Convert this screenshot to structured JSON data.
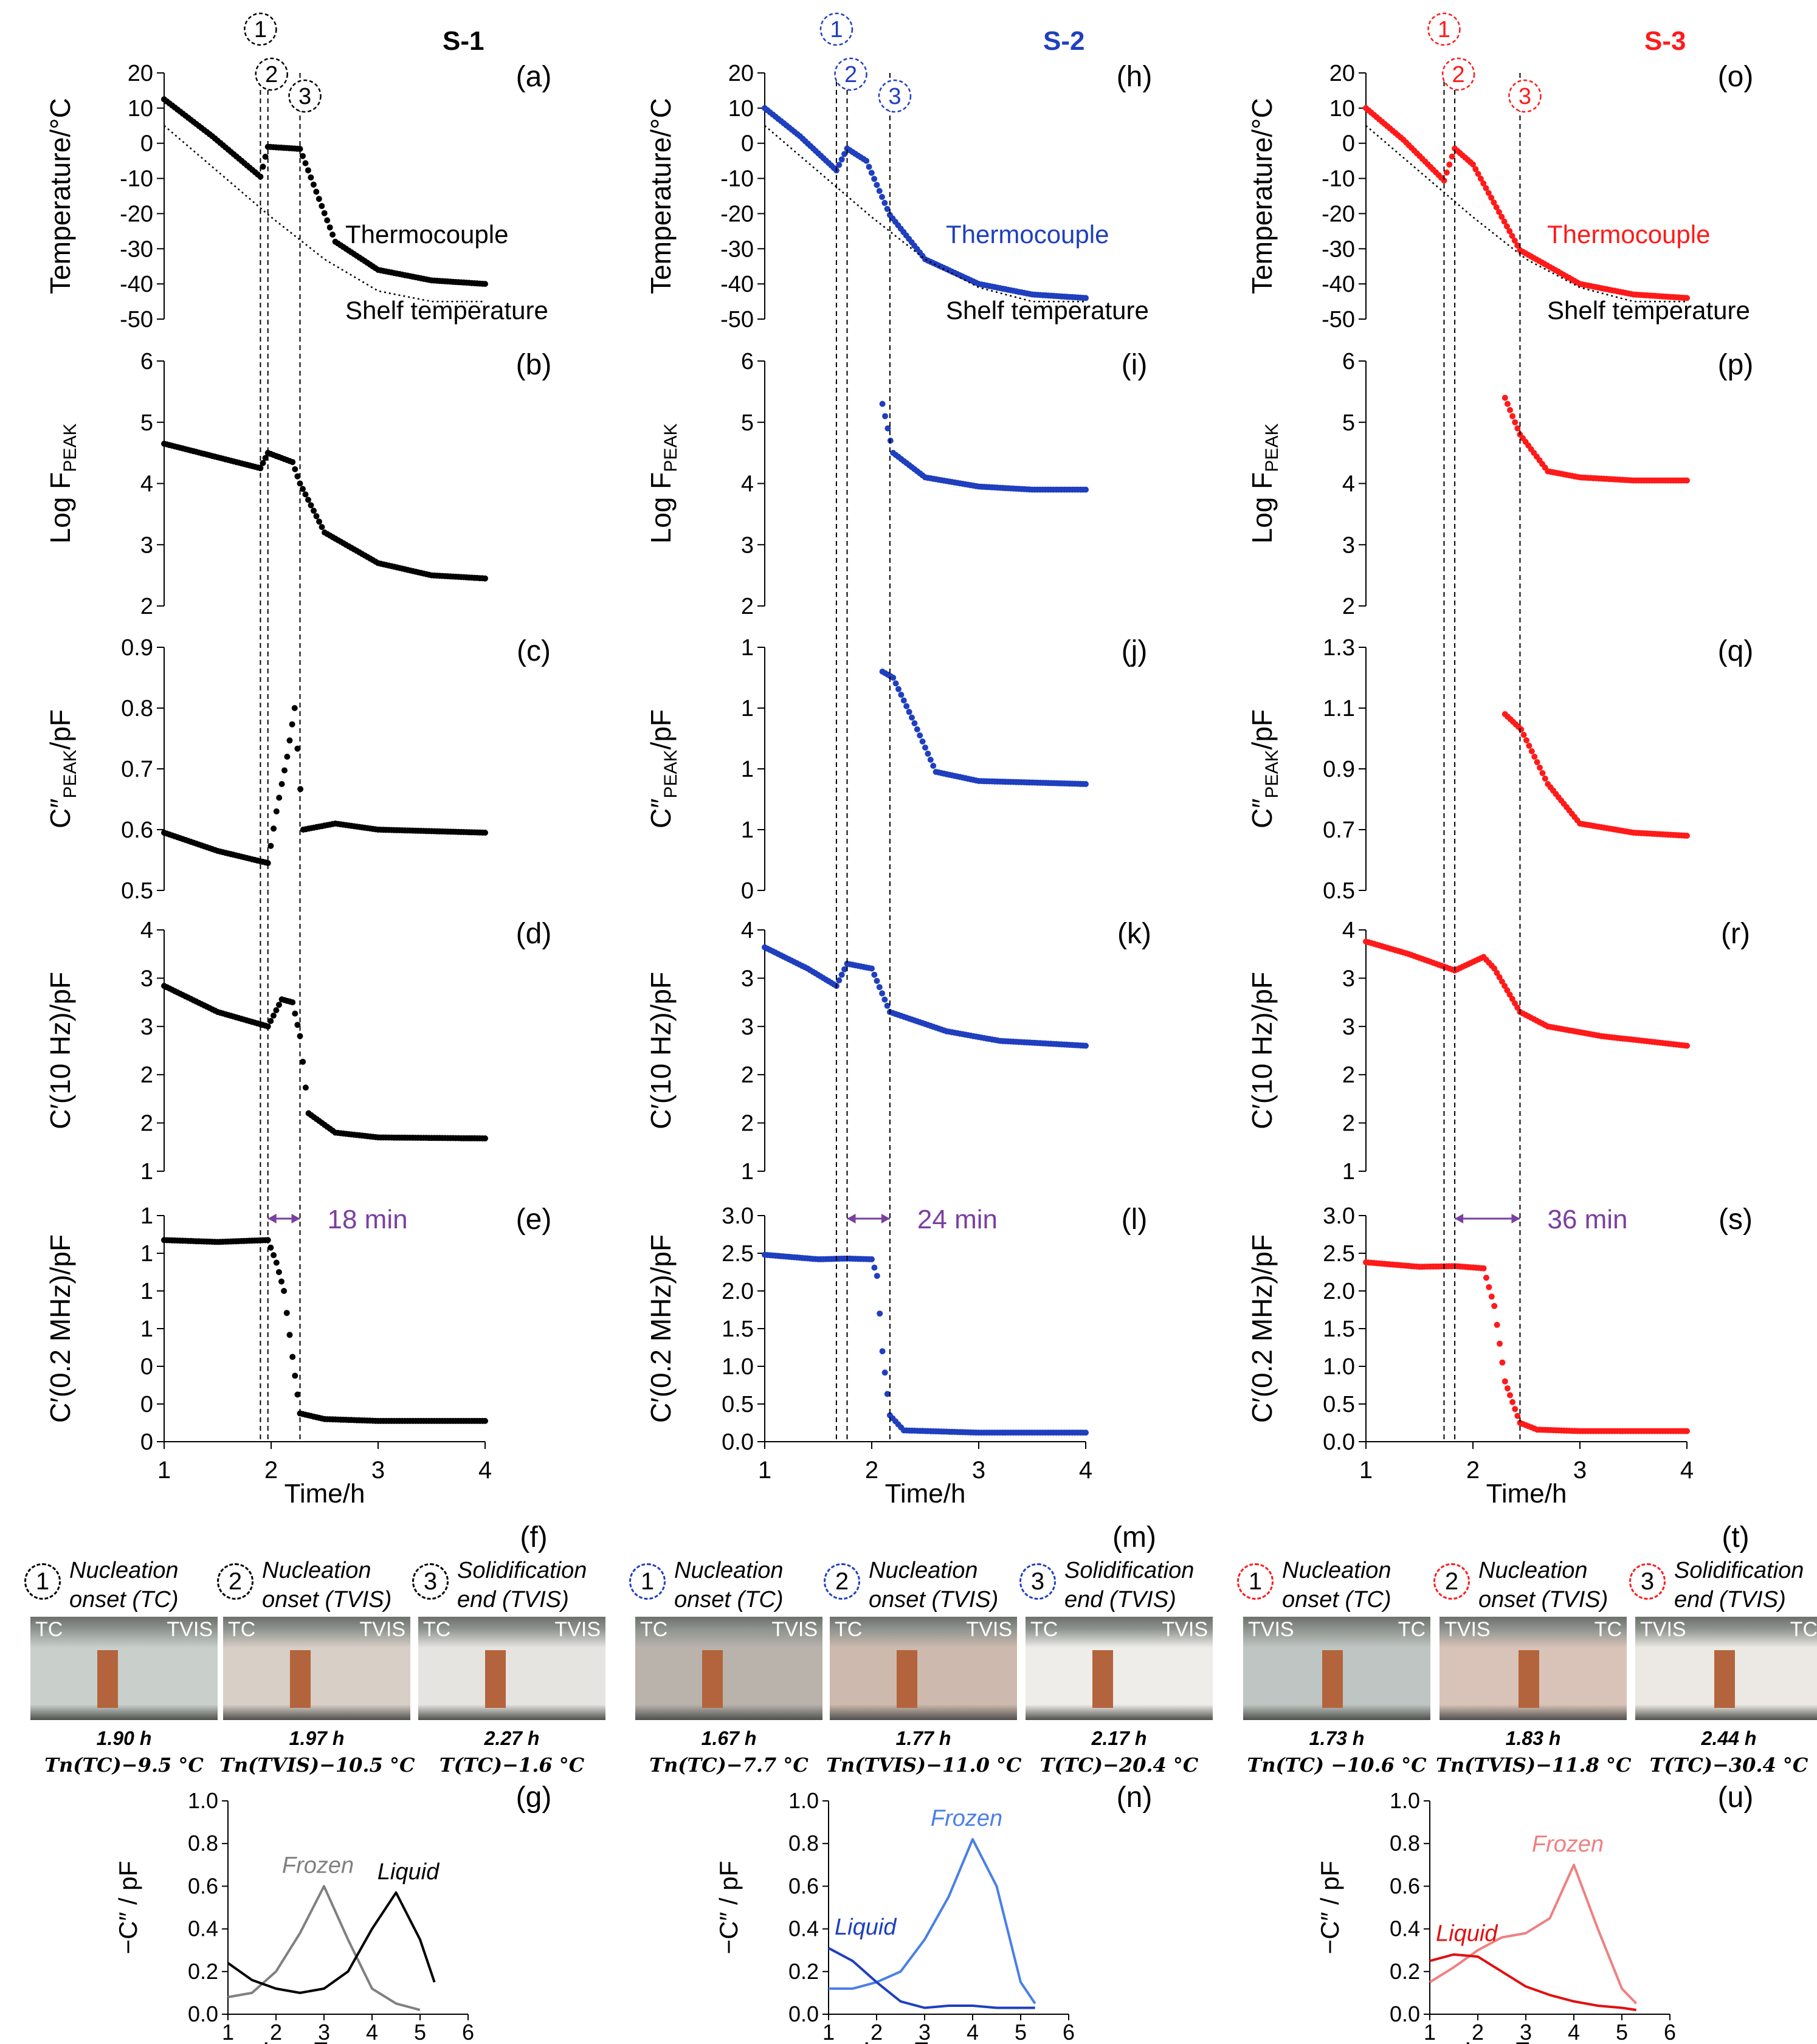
{
  "columns": [
    {
      "id": "s1",
      "sample_label": "S-1",
      "color": "#000000",
      "letters": [
        "(a)",
        "(b)",
        "(c)",
        "(d)",
        "(e)",
        "(f)",
        "(g)"
      ],
      "temp_labels": [
        "Thermocouple",
        "Shelf temperature"
      ],
      "span_label": "18 min",
      "event_times": [
        1.9,
        1.97,
        2.27
      ],
      "photo_captions": [
        {
          "num": "1",
          "line1": "Nucleation",
          "line2": "onset (TC)"
        },
        {
          "num": "2",
          "line1": "Nucleation",
          "line2": "onset (TVIS)"
        },
        {
          "num": "3",
          "line1": "Solidification",
          "line2": "end (TVIS)"
        }
      ],
      "photo_tags": [
        [
          "TC",
          "TVIS"
        ],
        [
          "TC",
          "TVIS"
        ],
        [
          "TC",
          "TVIS"
        ]
      ],
      "photo_times": [
        "1.90 h",
        "1.97 h",
        "2.27 h"
      ],
      "photo_conditions": [
        "Tn(TC)−9.5 °C",
        "Tn(TVIS)−10.5 °C",
        "T(TC)−1.6 °C"
      ],
      "spectrum_labels": [
        "Frozen",
        "Liquid"
      ]
    },
    {
      "id": "s2",
      "sample_label": "S-2",
      "color": "#1f3fbf",
      "letters": [
        "(h)",
        "(i)",
        "(j)",
        "(k)",
        "(l)",
        "(m)",
        "(n)"
      ],
      "temp_labels": [
        "Thermocouple",
        "Shelf temperature"
      ],
      "span_label": "24 min",
      "event_times": [
        1.67,
        1.77,
        2.17
      ],
      "photo_captions": [
        {
          "num": "1",
          "line1": "Nucleation",
          "line2": "onset (TC)"
        },
        {
          "num": "2",
          "line1": "Nucleation",
          "line2": "onset (TVIS)"
        },
        {
          "num": "3",
          "line1": "Solidification",
          "line2": "end (TVIS)"
        }
      ],
      "photo_tags": [
        [
          "TC",
          "TVIS"
        ],
        [
          "TC",
          "TVIS"
        ],
        [
          "TC",
          "TVIS"
        ]
      ],
      "photo_times": [
        "1.67 h",
        "1.77 h",
        "2.17 h"
      ],
      "photo_conditions": [
        "Tn(TC)−7.7 °C",
        "Tn(TVIS)−11.0 °C",
        "T(TC)−20.4 °C"
      ],
      "spectrum_labels": [
        "Frozen",
        "Liquid"
      ]
    },
    {
      "id": "s3",
      "sample_label": "S-3",
      "color": "#ff1a1a",
      "letters": [
        "(o)",
        "(p)",
        "(q)",
        "(r)",
        "(s)",
        "(t)",
        "(u)"
      ],
      "temp_labels": [
        "Thermocouple",
        "Shelf temperature"
      ],
      "span_label": "36 min",
      "event_times": [
        1.73,
        1.83,
        2.44
      ],
      "photo_captions": [
        {
          "num": "1",
          "line1": "Nucleation",
          "line2": "onset (TC)"
        },
        {
          "num": "2",
          "line1": "Nucleation",
          "line2": "onset (TVIS)"
        },
        {
          "num": "3",
          "line1": "Solidification",
          "line2": "end (TVIS)"
        }
      ],
      "photo_tags": [
        [
          "TVIS",
          "TC"
        ],
        [
          "TVIS",
          "TC"
        ],
        [
          "TVIS",
          "TC"
        ]
      ],
      "photo_times": [
        "1.73 h",
        "1.83 h",
        "2.44 h"
      ],
      "photo_conditions": [
        "Tn(TC) −10.6 °C",
        "Tn(TVIS)−11.8 °C",
        "T(TC)−30.4 °C"
      ],
      "spectrum_labels": [
        "Frozen",
        "Liquid"
      ]
    }
  ],
  "axis_text": {
    "ylabels": [
      "Temperature/°C",
      "Log F",
      "C″",
      "/pF",
      "C′(10 Hz)/pF",
      "C′(0.2 MHz)/pF"
    ],
    "peak_sub": "PEAK",
    "xlabel": "Time/h",
    "spec_xlabel": "Log Frequency",
    "spec_ylabel": "−C″ / pF"
  },
  "chart_data": [
    {
      "type": "scatter",
      "panel": "temperature",
      "x_range": [
        1,
        4
      ],
      "ylim": [
        -50,
        20
      ],
      "yticks": [
        20,
        10,
        0,
        -10,
        -20,
        -30,
        -40,
        -50
      ],
      "series": [
        {
          "name": "Thermocouple",
          "sample": "S-1",
          "x": [
            1.0,
            1.45,
            1.9,
            1.97,
            2.27,
            2.6,
            3.0,
            3.5,
            4.0
          ],
          "y": [
            12.5,
            2.0,
            -9.5,
            -1.0,
            -1.6,
            -28.0,
            -36.0,
            -39.0,
            -40.0
          ]
        },
        {
          "name": "Shelf temperature",
          "sample": "S-1",
          "x": [
            1.0,
            1.5,
            2.0,
            2.5,
            3.0,
            3.5,
            4.0
          ],
          "y": [
            5.0,
            -8.0,
            -21.0,
            -33.0,
            -42.0,
            -45.0,
            -45.0
          ]
        },
        {
          "name": "Thermocouple",
          "sample": "S-2",
          "x": [
            1.0,
            1.33,
            1.67,
            1.77,
            1.95,
            2.17,
            2.5,
            3.0,
            3.5,
            4.0
          ],
          "y": [
            10.0,
            2.0,
            -7.7,
            -1.5,
            -5.0,
            -20.4,
            -33.0,
            -40.0,
            -43.0,
            -44.0
          ]
        },
        {
          "name": "Shelf temperature",
          "sample": "S-2",
          "x": [
            1.0,
            1.5,
            2.0,
            2.5,
            3.0,
            3.5,
            4.0
          ],
          "y": [
            5.0,
            -8.0,
            -21.0,
            -33.0,
            -41.0,
            -45.0,
            -45.0
          ]
        },
        {
          "name": "Thermocouple",
          "sample": "S-3",
          "x": [
            1.0,
            1.35,
            1.73,
            1.83,
            2.0,
            2.44,
            3.0,
            3.5,
            4.0
          ],
          "y": [
            10.0,
            1.0,
            -10.6,
            -1.5,
            -6.0,
            -30.4,
            -40.0,
            -43.0,
            -44.0
          ]
        },
        {
          "name": "Shelf temperature",
          "sample": "S-3",
          "x": [
            1.0,
            1.5,
            2.0,
            2.5,
            3.0,
            3.5,
            4.0
          ],
          "y": [
            5.0,
            -8.0,
            -21.0,
            -33.0,
            -41.0,
            -45.0,
            -45.0
          ]
        }
      ]
    },
    {
      "type": "scatter",
      "panel": "log_fpeak",
      "x_range": [
        1,
        4
      ],
      "ylim": [
        2,
        6
      ],
      "yticks": [
        6,
        5,
        4,
        3,
        2
      ],
      "series": [
        {
          "sample": "S-1",
          "x": [
            1.0,
            1.9,
            1.97,
            2.2,
            2.27,
            2.5,
            3.0,
            3.5,
            4.0
          ],
          "y": [
            4.65,
            4.25,
            4.5,
            4.35,
            4.0,
            3.2,
            2.7,
            2.5,
            2.45
          ]
        },
        {
          "sample": "S-2",
          "x": [
            2.1,
            2.2,
            2.5,
            3.0,
            3.5,
            4.0
          ],
          "y": [
            5.3,
            4.5,
            4.1,
            3.95,
            3.9,
            3.9
          ]
        },
        {
          "sample": "S-3",
          "x": [
            2.3,
            2.44,
            2.7,
            3.0,
            3.5,
            4.0
          ],
          "y": [
            5.4,
            4.8,
            4.2,
            4.1,
            4.05,
            4.05
          ]
        }
      ]
    },
    {
      "type": "scatter",
      "panel": "c2_peak",
      "x_range": [
        1,
        4
      ],
      "series": [
        {
          "sample": "S-1",
          "ylim": [
            0.5,
            0.9
          ],
          "yticks": [
            0.9,
            0.8,
            0.7,
            0.6,
            0.5
          ],
          "x": [
            1.0,
            1.5,
            1.97,
            2.05,
            2.15,
            2.22,
            2.3,
            2.6,
            3.0,
            4.0
          ],
          "y": [
            0.595,
            0.565,
            0.545,
            0.63,
            0.72,
            0.8,
            0.6,
            0.61,
            0.6,
            0.595
          ]
        },
        {
          "sample": "S-2",
          "ylim": [
            0.4,
            1.2
          ],
          "yticks": [
            1.2,
            1.0,
            0.8,
            0.6,
            0.4
          ],
          "x": [
            2.1,
            2.2,
            2.4,
            2.6,
            3.0,
            4.0
          ],
          "y": [
            1.12,
            1.1,
            0.95,
            0.79,
            0.76,
            0.75
          ]
        },
        {
          "sample": "S-3",
          "ylim": [
            0.5,
            1.3
          ],
          "yticks": [
            1.3,
            1.1,
            0.9,
            0.7,
            0.5
          ],
          "x": [
            2.3,
            2.45,
            2.7,
            3.0,
            3.5,
            4.0
          ],
          "y": [
            1.08,
            1.03,
            0.85,
            0.72,
            0.69,
            0.68
          ]
        }
      ]
    },
    {
      "type": "scatter",
      "panel": "c1_10hz",
      "x_range": [
        1,
        4
      ],
      "ylim": [
        1.0,
        3.5
      ],
      "yticks": [
        3.5,
        3.0,
        2.5,
        2.0,
        1.5,
        1.0
      ],
      "series": [
        {
          "sample": "S-1",
          "x": [
            1.0,
            1.5,
            1.97,
            2.1,
            2.2,
            2.27,
            2.35,
            2.6,
            3.0,
            4.0
          ],
          "y": [
            2.92,
            2.65,
            2.5,
            2.78,
            2.75,
            2.4,
            1.6,
            1.4,
            1.35,
            1.34
          ]
        },
        {
          "sample": "S-2",
          "x": [
            1.0,
            1.4,
            1.67,
            1.77,
            2.0,
            2.17,
            2.3,
            2.7,
            3.2,
            4.0
          ],
          "y": [
            3.32,
            3.1,
            2.92,
            3.15,
            3.1,
            2.65,
            2.6,
            2.45,
            2.35,
            2.3
          ]
        },
        {
          "sample": "S-3",
          "x": [
            1.0,
            1.4,
            1.83,
            2.1,
            2.2,
            2.44,
            2.7,
            3.2,
            4.0
          ],
          "y": [
            3.38,
            3.25,
            3.08,
            3.22,
            3.1,
            2.65,
            2.5,
            2.4,
            2.3
          ]
        }
      ]
    },
    {
      "type": "scatter",
      "panel": "c1_02mhz",
      "x_range": [
        1,
        4
      ],
      "series": [
        {
          "sample": "S-1",
          "ylim": [
            0.0,
            1.2
          ],
          "yticks": [
            1.2,
            1.0,
            0.8,
            0.6,
            0.4,
            0.2,
            0.0
          ],
          "x": [
            1.0,
            1.5,
            1.97,
            2.05,
            2.12,
            2.2,
            2.27,
            2.5,
            3.0,
            4.0
          ],
          "y": [
            1.07,
            1.06,
            1.07,
            0.95,
            0.8,
            0.45,
            0.15,
            0.12,
            0.11,
            0.11
          ]
        },
        {
          "sample": "S-2",
          "ylim": [
            0.0,
            3.0
          ],
          "yticks": [
            3.0,
            2.5,
            2.0,
            1.5,
            1.0,
            0.5,
            0.0
          ],
          "x": [
            1.0,
            1.5,
            1.77,
            2.0,
            2.05,
            2.1,
            2.17,
            2.3,
            3.0,
            4.0
          ],
          "y": [
            2.48,
            2.42,
            2.43,
            2.42,
            2.2,
            1.2,
            0.35,
            0.15,
            0.12,
            0.12
          ]
        },
        {
          "sample": "S-3",
          "ylim": [
            0.0,
            3.0
          ],
          "yticks": [
            3.0,
            2.5,
            2.0,
            1.5,
            1.0,
            0.5,
            0.0
          ],
          "x": [
            1.0,
            1.5,
            1.83,
            2.1,
            2.2,
            2.3,
            2.44,
            2.6,
            3.0,
            4.0
          ],
          "y": [
            2.38,
            2.32,
            2.33,
            2.3,
            1.8,
            0.8,
            0.25,
            0.16,
            0.14,
            0.14
          ]
        }
      ]
    },
    {
      "type": "line",
      "panel": "spectra",
      "xlim": [
        1,
        6
      ],
      "ylim": [
        0.0,
        1.0
      ],
      "xticks": [
        1,
        2,
        3,
        4,
        5,
        6
      ],
      "yticks": [
        1.0,
        0.8,
        0.6,
        0.4,
        0.2,
        0.0
      ],
      "series": [
        {
          "name": "Frozen",
          "sample": "S-1",
          "color": "#808080",
          "x": [
            1.0,
            1.5,
            2.0,
            2.5,
            3.0,
            3.5,
            4.0,
            4.5,
            5.0
          ],
          "y": [
            0.08,
            0.1,
            0.2,
            0.38,
            0.6,
            0.35,
            0.12,
            0.05,
            0.02
          ]
        },
        {
          "name": "Liquid",
          "sample": "S-1",
          "color": "#000000",
          "x": [
            1.0,
            1.5,
            2.0,
            2.5,
            3.0,
            3.5,
            4.0,
            4.5,
            5.0,
            5.3
          ],
          "y": [
            0.24,
            0.16,
            0.12,
            0.1,
            0.12,
            0.2,
            0.4,
            0.57,
            0.35,
            0.15
          ]
        },
        {
          "name": "Frozen",
          "sample": "S-2",
          "color": "#4a7fe8",
          "x": [
            1.0,
            1.5,
            2.0,
            2.5,
            3.0,
            3.5,
            4.0,
            4.5,
            5.0,
            5.3
          ],
          "y": [
            0.12,
            0.12,
            0.15,
            0.2,
            0.35,
            0.55,
            0.82,
            0.6,
            0.15,
            0.05
          ]
        },
        {
          "name": "Liquid",
          "sample": "S-2",
          "color": "#1f3fbf",
          "x": [
            1.0,
            1.5,
            2.0,
            2.5,
            3.0,
            3.5,
            4.0,
            4.5,
            5.0,
            5.3
          ],
          "y": [
            0.31,
            0.25,
            0.15,
            0.06,
            0.03,
            0.04,
            0.04,
            0.03,
            0.03,
            0.03
          ]
        },
        {
          "name": "Frozen",
          "sample": "S-3",
          "color": "#f08080",
          "x": [
            1.0,
            1.5,
            2.0,
            2.5,
            3.0,
            3.5,
            4.0,
            4.5,
            5.0,
            5.3
          ],
          "y": [
            0.15,
            0.22,
            0.3,
            0.36,
            0.38,
            0.45,
            0.7,
            0.4,
            0.12,
            0.05
          ]
        },
        {
          "name": "Liquid",
          "sample": "S-3",
          "color": "#e01010",
          "x": [
            1.0,
            1.5,
            2.0,
            2.5,
            3.0,
            3.5,
            4.0,
            4.5,
            5.0,
            5.3
          ],
          "y": [
            0.25,
            0.28,
            0.27,
            0.2,
            0.13,
            0.09,
            0.06,
            0.04,
            0.03,
            0.02
          ]
        }
      ]
    }
  ]
}
